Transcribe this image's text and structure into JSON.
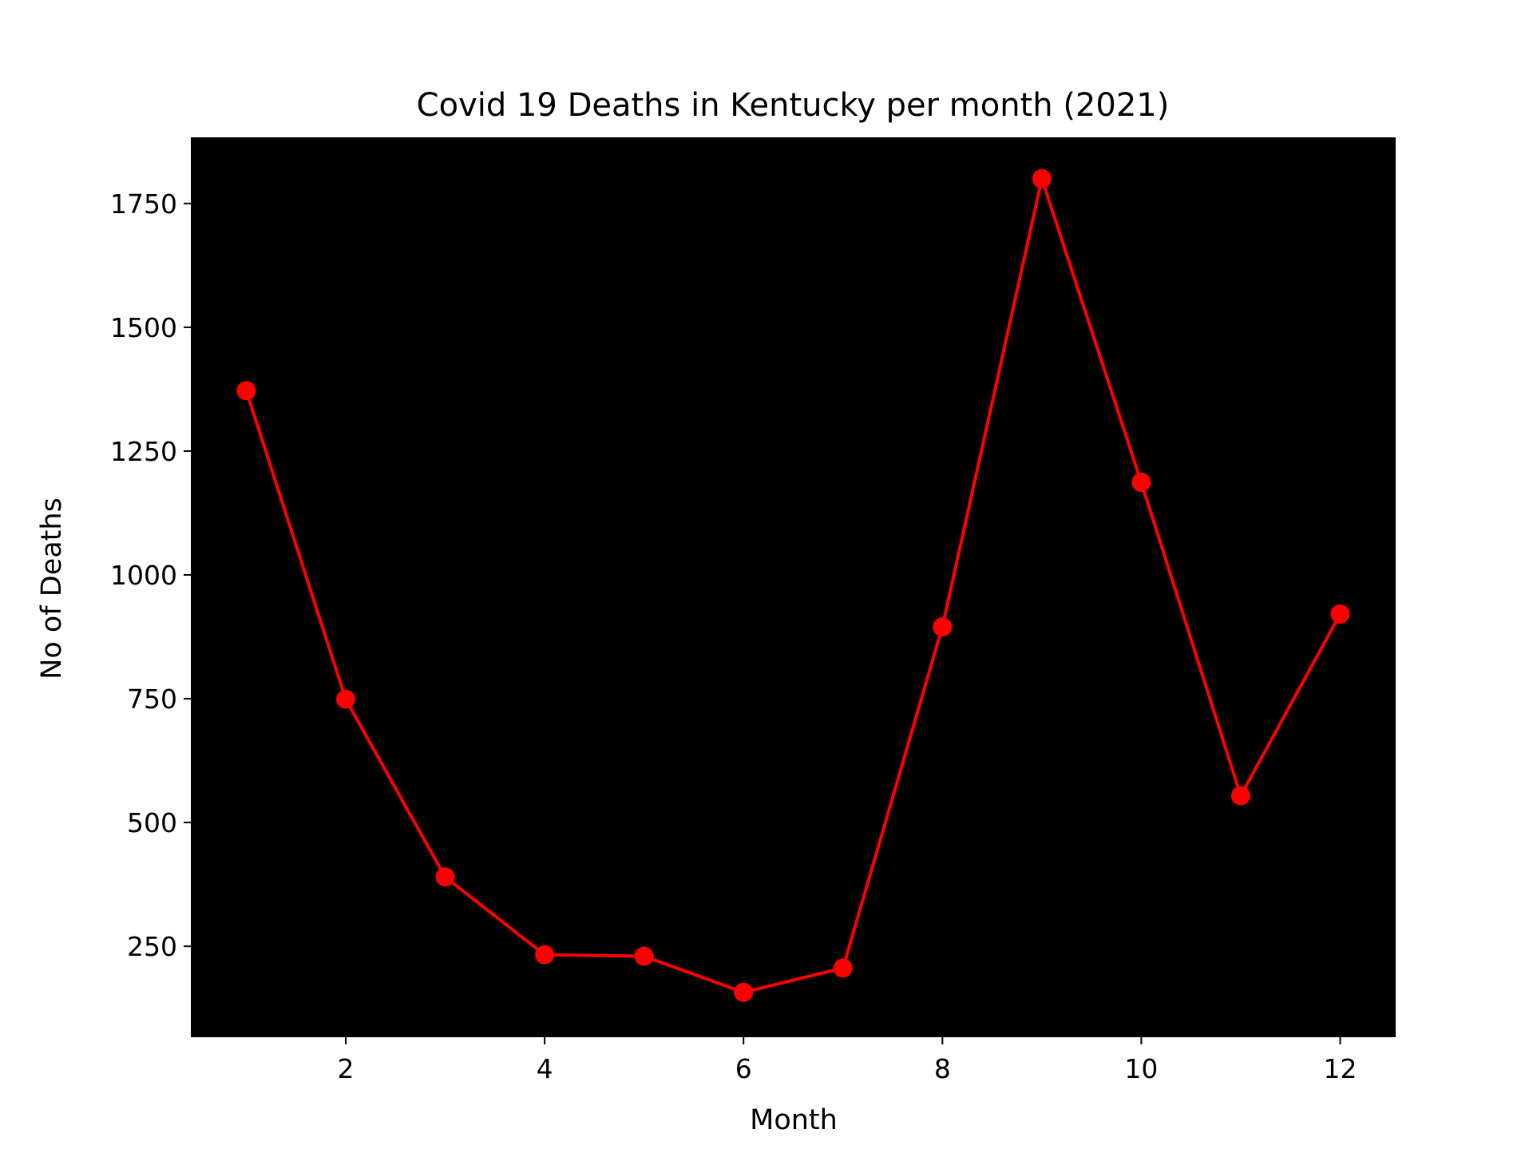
{
  "chart_data": {
    "type": "line",
    "title": "Covid 19 Deaths in Kentucky per month (2021)",
    "xlabel": "Month",
    "ylabel": "No of Deaths",
    "xlim": [
      0.45,
      12.55
    ],
    "ylim": [
      68,
      1882
    ],
    "xticks": [
      2,
      4,
      6,
      8,
      10,
      12
    ],
    "yticks": [
      250,
      500,
      750,
      1000,
      1250,
      1500,
      1750
    ],
    "grid": false,
    "plot_background": "#000000",
    "line_color": "#ff0000",
    "marker": "circle",
    "series": [
      {
        "x": [
          1,
          2,
          3,
          4,
          5,
          6,
          7,
          8,
          9,
          10,
          11,
          12
        ],
        "values": [
          1372,
          749,
          390,
          233,
          230,
          157,
          206,
          895,
          1800,
          1187,
          554,
          921
        ]
      }
    ]
  }
}
